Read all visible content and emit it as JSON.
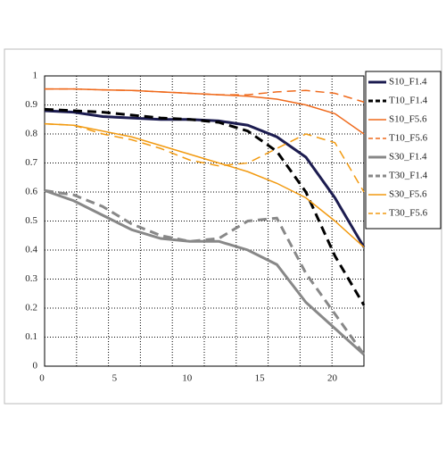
{
  "chart_data": {
    "type": "line",
    "x": [
      0,
      2,
      4,
      6,
      8,
      10,
      12,
      14,
      16,
      18,
      20,
      22
    ],
    "series": [
      {
        "name": "S10_F1.4",
        "color": "#1c1c50",
        "dash": false,
        "width": 3,
        "values": [
          0.88,
          0.875,
          0.86,
          0.855,
          0.85,
          0.85,
          0.845,
          0.83,
          0.79,
          0.72,
          0.58,
          0.41
        ]
      },
      {
        "name": "T10_F1.4",
        "color": "#000000",
        "dash": true,
        "width": 3,
        "values": [
          0.885,
          0.88,
          0.875,
          0.865,
          0.855,
          0.85,
          0.84,
          0.81,
          0.74,
          0.6,
          0.38,
          0.21
        ]
      },
      {
        "name": "S10_F5.6",
        "color": "#ef6a1c",
        "dash": false,
        "width": 1.5,
        "values": [
          0.955,
          0.955,
          0.952,
          0.95,
          0.945,
          0.94,
          0.935,
          0.93,
          0.92,
          0.9,
          0.87,
          0.8
        ]
      },
      {
        "name": "T10_F5.6",
        "color": "#ef6a1c",
        "dash": true,
        "width": 1.5,
        "values": [
          0.955,
          0.955,
          0.952,
          0.95,
          0.945,
          0.94,
          0.935,
          0.935,
          0.945,
          0.95,
          0.94,
          0.91
        ]
      },
      {
        "name": "S30_F1.4",
        "color": "#888888",
        "dash": false,
        "width": 3,
        "values": [
          0.605,
          0.57,
          0.52,
          0.47,
          0.44,
          0.43,
          0.43,
          0.4,
          0.35,
          0.22,
          0.13,
          0.04
        ]
      },
      {
        "name": "T30_F1.4",
        "color": "#888888",
        "dash": true,
        "width": 3,
        "values": [
          0.605,
          0.59,
          0.55,
          0.49,
          0.45,
          0.43,
          0.44,
          0.5,
          0.51,
          0.32,
          0.18,
          0.04
        ]
      },
      {
        "name": "S30_F5.6",
        "color": "#f29a10",
        "dash": false,
        "width": 1.5,
        "values": [
          0.835,
          0.83,
          0.81,
          0.79,
          0.76,
          0.73,
          0.7,
          0.67,
          0.63,
          0.58,
          0.5,
          0.41
        ]
      },
      {
        "name": "T30_F5.6",
        "color": "#f29a10",
        "dash": true,
        "width": 1.5,
        "values": [
          0.835,
          0.83,
          0.8,
          0.78,
          0.75,
          0.71,
          0.69,
          0.7,
          0.75,
          0.8,
          0.77,
          0.6
        ]
      }
    ],
    "xlim": [
      0,
      22
    ],
    "ylim": [
      0,
      1
    ],
    "xticks": [
      0,
      5,
      10,
      15,
      20
    ],
    "yticks": [
      0,
      0.1,
      0.2,
      0.3,
      0.4,
      0.5,
      0.6,
      0.7,
      0.8,
      0.9,
      1
    ],
    "xgrid": [
      0,
      2.2,
      4.4,
      6.6,
      8.8,
      11,
      13.2,
      15.4,
      17.6,
      19.8,
      22
    ],
    "grid": true,
    "legend": "right"
  }
}
